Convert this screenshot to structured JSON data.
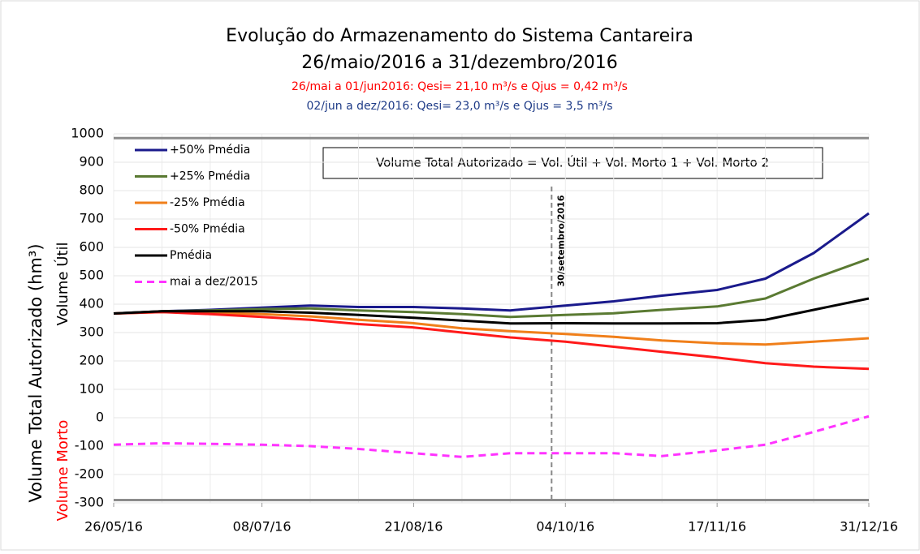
{
  "chart_data": {
    "type": "line",
    "title": "Evolução do Armazenamento do Sistema Cantareira",
    "subtitle": "26/maio/2016 a 31/dezembro/2016",
    "notes": [
      {
        "text": "26/mai a 01/jun2016: Qesi= 21,10 m³/s e Qjus = 0,42 m³/s",
        "color": "#ff0000"
      },
      {
        "text": "02/jun a dez/2016: Qesi= 23,0 m³/s e Qjus = 3,5 m³/s",
        "color": "#1f3c88"
      }
    ],
    "box_text": "Volume Total Autorizado = Vol. Útil + Vol. Morto 1 + Vol. Morto 2",
    "y_label": "Volume Total Autorizado (hm³)",
    "y_label_upper": "Volume Útil",
    "y_label_lower": "Volume Morto",
    "vline": {
      "x": "30/09/16",
      "label": "30/setembro/2016"
    },
    "reference_lines": [
      985,
      -290
    ],
    "x": [
      "26/05/16",
      "09/06/16",
      "23/06/16",
      "08/07/16",
      "22/07/16",
      "05/08/16",
      "21/08/16",
      "04/09/16",
      "18/09/16",
      "04/10/16",
      "18/10/16",
      "01/11/16",
      "17/11/16",
      "01/12/16",
      "15/12/16",
      "31/12/16"
    ],
    "xlim": [
      "26/05/16",
      "31/12/16"
    ],
    "xticks": [
      "26/05/16",
      "08/07/16",
      "21/08/16",
      "04/10/16",
      "17/11/16",
      "31/12/16"
    ],
    "ylim": [
      -300,
      1000
    ],
    "yticks": [
      -300,
      -200,
      -100,
      0,
      100,
      200,
      300,
      400,
      500,
      600,
      700,
      800,
      900,
      1000
    ],
    "grid": true,
    "series": [
      {
        "name": "+50% Pmédia",
        "color": "#1a1a8c",
        "dash": false,
        "values": [
          367,
          375,
          380,
          388,
          395,
          390,
          390,
          385,
          378,
          395,
          410,
          430,
          450,
          490,
          580,
          720
        ]
      },
      {
        "name": "+25% Pmédia",
        "color": "#5a7a32",
        "dash": false,
        "values": [
          367,
          375,
          378,
          383,
          385,
          378,
          372,
          365,
          355,
          362,
          368,
          380,
          392,
          420,
          490,
          560
        ]
      },
      {
        "name": "-25% Pmédia",
        "color": "#f07f1a",
        "dash": false,
        "values": [
          367,
          372,
          370,
          365,
          357,
          345,
          333,
          315,
          305,
          295,
          285,
          272,
          262,
          258,
          268,
          280
        ]
      },
      {
        "name": "-50% Pmédia",
        "color": "#ff1a1a",
        "dash": false,
        "values": [
          367,
          372,
          365,
          355,
          345,
          330,
          318,
          300,
          283,
          268,
          250,
          232,
          212,
          192,
          180,
          172
        ]
      },
      {
        "name": "Pmédia",
        "color": "#000000",
        "dash": false,
        "values": [
          367,
          375,
          375,
          375,
          370,
          362,
          352,
          342,
          332,
          333,
          332,
          332,
          333,
          345,
          380,
          420
        ]
      },
      {
        "name": "mai a dez/2015",
        "color": "#ff33ff",
        "dash": true,
        "values": [
          -95,
          -90,
          -92,
          -95,
          -100,
          -110,
          -125,
          -138,
          -125,
          -125,
          -125,
          -135,
          -115,
          -95,
          -50,
          5
        ]
      }
    ]
  }
}
